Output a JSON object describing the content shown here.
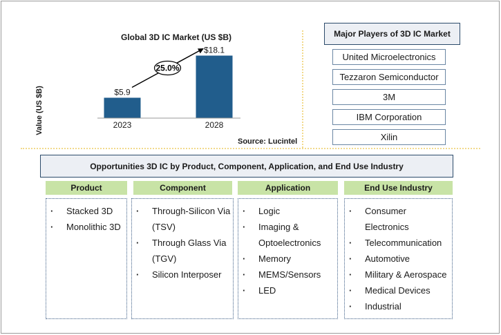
{
  "chart_data": {
    "type": "bar",
    "title": "Global  3D IC Market  (US $B)",
    "ylabel": "Value (US $B)",
    "categories": [
      "2023",
      "2028"
    ],
    "values": [
      5.9,
      18.1
    ],
    "value_labels": [
      "$5.9",
      "$18.1"
    ],
    "ylim": [
      0,
      23
    ],
    "bar_color": "#215d8c",
    "grid": false,
    "growth_label": "25.0%",
    "source": "Source: Lucintel"
  },
  "players": {
    "title": "Major Players of 3D IC Market",
    "items": [
      "United Microelectronics",
      "Tezzaron Semiconductor",
      "3M",
      "IBM Corporation",
      "Xilin"
    ]
  },
  "opportunities": {
    "title": "Opportunities 3D IC by Product, Component, Application, and End Use Industry",
    "columns": [
      {
        "title": "Product",
        "items": [
          "Stacked 3D",
          "Monolithic 3D"
        ]
      },
      {
        "title": "Component",
        "items": [
          "Through-Silicon Via (TSV)",
          "Through Glass Via (TGV)",
          "Silicon Interposer"
        ]
      },
      {
        "title": "Application",
        "items": [
          "Logic",
          "Imaging & Optoelectronics",
          "Memory",
          "MEMS/Sensors",
          "LED"
        ]
      },
      {
        "title": "End Use Industry",
        "items": [
          "Consumer Electronics",
          "Telecommunication",
          "Automotive",
          "Military & Aerospace",
          "Medical Devices",
          "Industrial"
        ]
      }
    ]
  }
}
